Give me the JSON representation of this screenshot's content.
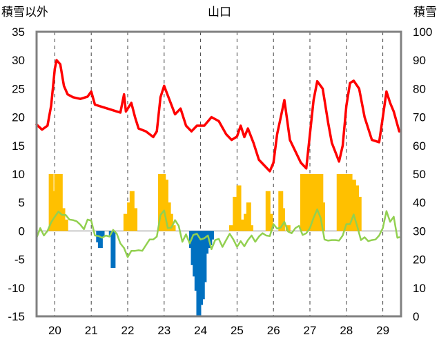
{
  "chart_data": {
    "type": "line",
    "title": "山口",
    "ylabel_left": "積雪以外",
    "ylabel_right": "積雪",
    "x_labels": [
      "20",
      "21",
      "22",
      "23",
      "24",
      "25",
      "26",
      "27",
      "28",
      "29"
    ],
    "xlim": [
      19.5,
      29.5
    ],
    "ylim_left": [
      -15,
      35
    ],
    "ylim_right": [
      0,
      100
    ],
    "yticks_left": [
      35,
      30,
      25,
      20,
      15,
      10,
      5,
      0,
      -5,
      -10,
      -15
    ],
    "yticks_right": [
      100,
      90,
      80,
      70,
      60,
      50,
      40,
      30,
      20,
      10,
      0
    ],
    "grid": "dashed-vertical",
    "colors": {
      "red": "#ff0000",
      "green": "#92d050",
      "orange": "#ffc000",
      "blue": "#0070c0",
      "frame": "#808080"
    },
    "series": [
      {
        "axis": "left",
        "color": "#ff0000",
        "style": "line",
        "points": [
          [
            19.5,
            18.7
          ],
          [
            19.65,
            17.8
          ],
          [
            19.8,
            18.5
          ],
          [
            19.9,
            22
          ],
          [
            20.0,
            28.5
          ],
          [
            20.05,
            30.0
          ],
          [
            20.15,
            29.3
          ],
          [
            20.25,
            25.5
          ],
          [
            20.35,
            24
          ],
          [
            20.5,
            23.5
          ],
          [
            20.7,
            23.2
          ],
          [
            20.9,
            23.6
          ],
          [
            21.0,
            24.5
          ],
          [
            21.1,
            22.2
          ],
          [
            21.3,
            21.8
          ],
          [
            21.5,
            21.4
          ],
          [
            21.7,
            21.0
          ],
          [
            21.8,
            20.8
          ],
          [
            21.9,
            24
          ],
          [
            21.95,
            21
          ],
          [
            22.1,
            22.5
          ],
          [
            22.2,
            20
          ],
          [
            22.3,
            18
          ],
          [
            22.5,
            17.5
          ],
          [
            22.7,
            16.5
          ],
          [
            22.8,
            17.5
          ],
          [
            22.9,
            23.5
          ],
          [
            23.0,
            25.5
          ],
          [
            23.1,
            23.8
          ],
          [
            23.3,
            20.5
          ],
          [
            23.45,
            21.5
          ],
          [
            23.6,
            18.5
          ],
          [
            23.75,
            17.5
          ],
          [
            23.9,
            18.5
          ],
          [
            24.1,
            18.5
          ],
          [
            24.3,
            20
          ],
          [
            24.5,
            19.3
          ],
          [
            24.7,
            17
          ],
          [
            24.85,
            16
          ],
          [
            25.0,
            16.6
          ],
          [
            25.1,
            18.5
          ],
          [
            25.2,
            16.5
          ],
          [
            25.3,
            18
          ],
          [
            25.45,
            15.5
          ],
          [
            25.6,
            12.5
          ],
          [
            25.75,
            11.5
          ],
          [
            25.9,
            10.5
          ],
          [
            26.0,
            12
          ],
          [
            26.1,
            17
          ],
          [
            26.2,
            20
          ],
          [
            26.3,
            23
          ],
          [
            26.45,
            16
          ],
          [
            26.6,
            14
          ],
          [
            26.75,
            12
          ],
          [
            26.9,
            11
          ],
          [
            27.0,
            17
          ],
          [
            27.1,
            23
          ],
          [
            27.2,
            26.3
          ],
          [
            27.35,
            25
          ],
          [
            27.5,
            19
          ],
          [
            27.6,
            15.5
          ],
          [
            27.8,
            12.2
          ],
          [
            27.9,
            15
          ],
          [
            28.0,
            22
          ],
          [
            28.1,
            26
          ],
          [
            28.2,
            26.4
          ],
          [
            28.35,
            25
          ],
          [
            28.5,
            20
          ],
          [
            28.7,
            16
          ],
          [
            28.9,
            15.6
          ],
          [
            29.0,
            20
          ],
          [
            29.1,
            24.5
          ],
          [
            29.2,
            22.5
          ],
          [
            29.3,
            21
          ],
          [
            29.45,
            17.5
          ]
        ]
      },
      {
        "axis": "left",
        "color": "#92d050",
        "style": "line",
        "points": [
          [
            19.5,
            -1.2
          ],
          [
            19.6,
            0.5
          ],
          [
            19.7,
            -0.8
          ],
          [
            19.8,
            0
          ],
          [
            19.9,
            1.5
          ],
          [
            20.0,
            2.5
          ],
          [
            20.1,
            3.4
          ],
          [
            20.2,
            2.8
          ],
          [
            20.3,
            2.8
          ],
          [
            20.4,
            2.0
          ],
          [
            20.5,
            1.9
          ],
          [
            20.6,
            1.7
          ],
          [
            20.7,
            1.1
          ],
          [
            20.8,
            0.3
          ],
          [
            20.9,
            2.0
          ],
          [
            21.0,
            1.8
          ],
          [
            21.1,
            -0.8
          ],
          [
            21.2,
            -0.9
          ],
          [
            21.3,
            -1.2
          ],
          [
            21.4,
            -0.8
          ],
          [
            21.5,
            -1.0
          ],
          [
            21.6,
            0.2
          ],
          [
            21.7,
            -0.5
          ],
          [
            21.8,
            -2.2
          ],
          [
            21.9,
            -3.0
          ],
          [
            22.0,
            -4.6
          ],
          [
            22.1,
            -3.5
          ],
          [
            22.2,
            -3.5
          ],
          [
            22.3,
            -3.4
          ],
          [
            22.4,
            -3.5
          ],
          [
            22.5,
            -2.5
          ],
          [
            22.6,
            -1.5
          ],
          [
            22.7,
            -1.5
          ],
          [
            22.8,
            -1.0
          ],
          [
            22.9,
            2.8
          ],
          [
            23.0,
            3.6
          ],
          [
            23.1,
            0.5
          ],
          [
            23.2,
            0.6
          ],
          [
            23.3,
            1.9
          ],
          [
            23.4,
            0.9
          ],
          [
            23.5,
            -1.9
          ],
          [
            23.6,
            -0.6
          ],
          [
            23.7,
            -2.2
          ],
          [
            23.8,
            -0.7
          ],
          [
            23.9,
            -0.5
          ],
          [
            24.0,
            -1.5
          ],
          [
            24.1,
            -1.3
          ],
          [
            24.2,
            -0.8
          ],
          [
            24.3,
            -3.2
          ],
          [
            24.4,
            -1.6
          ],
          [
            24.5,
            -1.4
          ],
          [
            24.6,
            -2.8
          ],
          [
            24.7,
            -1.6
          ],
          [
            24.8,
            -0.5
          ],
          [
            24.9,
            -1.5
          ],
          [
            25.0,
            -2.8
          ],
          [
            25.1,
            -1.8
          ],
          [
            25.2,
            -2.7
          ],
          [
            25.3,
            -1.6
          ],
          [
            25.4,
            -0.8
          ],
          [
            25.5,
            -1.9
          ],
          [
            25.6,
            -1.0
          ],
          [
            25.7,
            -0.4
          ],
          [
            25.8,
            -0.8
          ],
          [
            25.9,
            -0.9
          ],
          [
            26.0,
            1.2
          ],
          [
            26.1,
            0.4
          ],
          [
            26.2,
            0.6
          ],
          [
            26.3,
            1.6
          ],
          [
            26.4,
            -0.1
          ],
          [
            26.5,
            -0.4
          ],
          [
            26.6,
            0.5
          ],
          [
            26.7,
            0.9
          ],
          [
            26.8,
            -0.7
          ],
          [
            26.9,
            -0.4
          ],
          [
            27.0,
            0.5
          ],
          [
            27.1,
            2.3
          ],
          [
            27.2,
            3.8
          ],
          [
            27.3,
            2.2
          ],
          [
            27.4,
            -1.5
          ],
          [
            27.5,
            -1.7
          ],
          [
            27.6,
            -1.6
          ],
          [
            27.7,
            -1.6
          ],
          [
            27.8,
            -1.7
          ],
          [
            27.9,
            -0.8
          ],
          [
            28.0,
            1.2
          ],
          [
            28.1,
            1.2
          ],
          [
            28.2,
            2.9
          ],
          [
            28.3,
            0.8
          ],
          [
            28.4,
            -1.6
          ],
          [
            28.5,
            -1.1
          ],
          [
            28.6,
            -1.8
          ],
          [
            28.7,
            -1.6
          ],
          [
            28.8,
            -1.5
          ],
          [
            28.9,
            -0.8
          ],
          [
            29.0,
            0.5
          ],
          [
            29.1,
            3.5
          ],
          [
            29.2,
            1.6
          ],
          [
            29.3,
            2.5
          ],
          [
            29.4,
            -1.2
          ],
          [
            29.45,
            -1.1
          ]
        ]
      },
      {
        "axis": "left",
        "color": "#ffc000",
        "style": "bar",
        "points": [
          [
            19.9,
            10
          ],
          [
            19.95,
            7
          ],
          [
            20.05,
            10
          ],
          [
            20.15,
            10
          ],
          [
            20.22,
            4
          ],
          [
            20.3,
            2
          ],
          [
            21.95,
            3
          ],
          [
            22.05,
            5
          ],
          [
            22.12,
            7
          ],
          [
            22.2,
            4
          ],
          [
            22.9,
            10
          ],
          [
            22.98,
            10
          ],
          [
            23.05,
            9
          ],
          [
            23.12,
            5
          ],
          [
            23.18,
            3
          ],
          [
            23.25,
            1
          ],
          [
            24.85,
            1
          ],
          [
            24.95,
            6
          ],
          [
            25.05,
            8
          ],
          [
            25.15,
            2
          ],
          [
            25.25,
            3
          ],
          [
            25.32,
            5
          ],
          [
            25.38,
            1
          ],
          [
            25.85,
            7
          ],
          [
            25.92,
            3
          ],
          [
            26.2,
            7
          ],
          [
            26.25,
            4
          ],
          [
            26.4,
            1
          ],
          [
            26.8,
            10
          ],
          [
            26.9,
            10
          ],
          [
            27.0,
            10
          ],
          [
            27.1,
            10
          ],
          [
            27.2,
            10
          ],
          [
            27.3,
            10
          ],
          [
            27.35,
            5
          ],
          [
            27.8,
            10
          ],
          [
            27.9,
            10
          ],
          [
            28.0,
            10
          ],
          [
            28.1,
            10
          ],
          [
            28.2,
            9
          ],
          [
            28.28,
            8
          ],
          [
            28.35,
            6
          ]
        ]
      },
      {
        "axis": "left",
        "color": "#0070c0",
        "style": "bar",
        "points": [
          [
            21.2,
            -2
          ],
          [
            21.25,
            -3
          ],
          [
            21.3,
            -1
          ],
          [
            21.55,
            -1
          ],
          [
            21.6,
            -6.5
          ],
          [
            23.75,
            -3
          ],
          [
            23.8,
            -6
          ],
          [
            23.85,
            -8
          ],
          [
            23.9,
            -10.5
          ],
          [
            23.95,
            -15
          ],
          [
            24.0,
            -13
          ],
          [
            24.05,
            -12
          ],
          [
            24.1,
            -9
          ],
          [
            24.15,
            -4
          ],
          [
            24.2,
            -3
          ],
          [
            24.25,
            -2.5
          ],
          [
            24.3,
            -1.5
          ]
        ]
      }
    ]
  }
}
